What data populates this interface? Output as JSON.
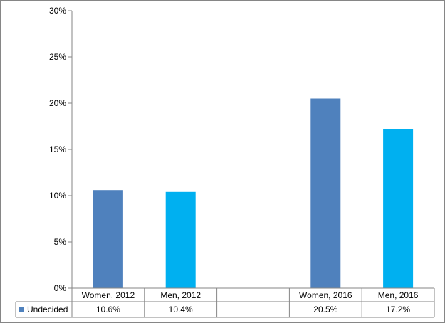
{
  "chart_data": {
    "type": "bar",
    "categories": [
      "Women, 2012",
      "Men, 2012",
      "",
      "Women, 2016",
      "Men, 2016"
    ],
    "series": [
      {
        "name": "Undecided",
        "values": [
          10.6,
          10.4,
          null,
          20.5,
          17.2
        ],
        "display": [
          "10.6%",
          "10.4%",
          "",
          "20.5%",
          "17.2%"
        ]
      }
    ],
    "bar_colors": [
      "#4f81bd",
      "#00b0f0",
      "#ffffff",
      "#4f81bd",
      "#00b0f0"
    ],
    "legend_color": "#4f81bd",
    "yticks": [
      0,
      5,
      10,
      15,
      20,
      25,
      30
    ],
    "ytick_labels": [
      "0%",
      "5%",
      "10%",
      "15%",
      "20%",
      "25%",
      "30%"
    ],
    "ylim": [
      0,
      30
    ],
    "data_table": true,
    "grid": false
  }
}
